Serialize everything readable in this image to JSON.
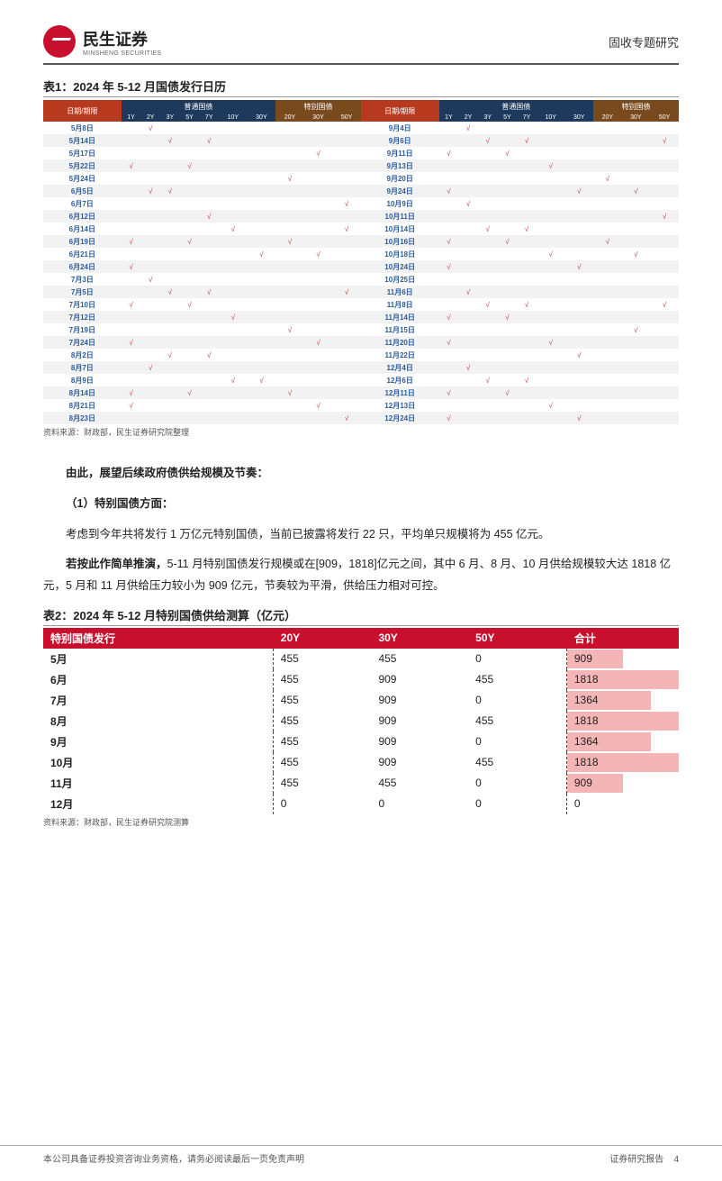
{
  "header": {
    "company_cn": "民生证券",
    "company_en": "MINSHENG SECURITIES",
    "doc_type": "固收专题研究"
  },
  "table1": {
    "title": "表1：2024 年 5-12 月国债发行日历",
    "group_labels": {
      "date": "日期/期限",
      "normal": "普通国债",
      "special": "特别国债"
    },
    "tenors_normal": [
      "1Y",
      "2Y",
      "3Y",
      "5Y",
      "7Y",
      "10Y",
      "30Y"
    ],
    "tenors_special": [
      "20Y",
      "30Y",
      "50Y"
    ],
    "check": "√",
    "header_colors": {
      "date": "#b83a1e",
      "normal": "#1d3a5c",
      "special": "#7a4a1f"
    },
    "left": [
      {
        "d": "5月8日",
        "m": [
          0,
          1,
          0,
          0,
          0,
          0,
          0,
          0,
          0,
          0
        ]
      },
      {
        "d": "5月14日",
        "m": [
          0,
          0,
          1,
          0,
          1,
          0,
          0,
          0,
          0,
          0
        ]
      },
      {
        "d": "5月17日",
        "m": [
          0,
          0,
          0,
          0,
          0,
          0,
          0,
          0,
          1,
          0
        ]
      },
      {
        "d": "5月22日",
        "m": [
          1,
          0,
          0,
          1,
          0,
          0,
          0,
          0,
          0,
          0
        ]
      },
      {
        "d": "5月24日",
        "m": [
          0,
          0,
          0,
          0,
          0,
          0,
          0,
          1,
          0,
          0
        ]
      },
      {
        "d": "6月5日",
        "m": [
          0,
          1,
          1,
          0,
          0,
          0,
          0,
          0,
          0,
          0
        ]
      },
      {
        "d": "6月7日",
        "m": [
          0,
          0,
          0,
          0,
          0,
          0,
          0,
          0,
          0,
          1
        ]
      },
      {
        "d": "6月12日",
        "m": [
          0,
          0,
          0,
          0,
          1,
          0,
          0,
          0,
          0,
          0
        ]
      },
      {
        "d": "6月14日",
        "m": [
          0,
          0,
          0,
          0,
          0,
          1,
          0,
          0,
          0,
          1
        ]
      },
      {
        "d": "6月19日",
        "m": [
          1,
          0,
          0,
          1,
          0,
          0,
          0,
          1,
          0,
          0
        ]
      },
      {
        "d": "6月21日",
        "m": [
          0,
          0,
          0,
          0,
          0,
          0,
          1,
          0,
          1,
          0
        ]
      },
      {
        "d": "6月24日",
        "m": [
          1,
          0,
          0,
          0,
          0,
          0,
          0,
          0,
          0,
          0
        ]
      },
      {
        "d": "7月3日",
        "m": [
          0,
          1,
          0,
          0,
          0,
          0,
          0,
          0,
          0,
          0
        ]
      },
      {
        "d": "7月5日",
        "m": [
          0,
          0,
          1,
          0,
          1,
          0,
          0,
          0,
          0,
          1
        ]
      },
      {
        "d": "7月10日",
        "m": [
          1,
          0,
          0,
          1,
          0,
          0,
          0,
          0,
          0,
          0
        ]
      },
      {
        "d": "7月12日",
        "m": [
          0,
          0,
          0,
          0,
          0,
          1,
          0,
          0,
          0,
          0
        ]
      },
      {
        "d": "7月19日",
        "m": [
          0,
          0,
          0,
          0,
          0,
          0,
          0,
          1,
          0,
          0
        ]
      },
      {
        "d": "7月24日",
        "m": [
          1,
          0,
          0,
          0,
          0,
          0,
          0,
          0,
          1,
          0
        ]
      },
      {
        "d": "8月2日",
        "m": [
          0,
          0,
          1,
          0,
          1,
          0,
          0,
          0,
          0,
          0
        ]
      },
      {
        "d": "8月7日",
        "m": [
          0,
          1,
          0,
          0,
          0,
          0,
          0,
          0,
          0,
          0
        ]
      },
      {
        "d": "8月9日",
        "m": [
          0,
          0,
          0,
          0,
          0,
          1,
          1,
          0,
          0,
          0
        ]
      },
      {
        "d": "8月14日",
        "m": [
          1,
          0,
          0,
          1,
          0,
          0,
          0,
          1,
          0,
          0
        ]
      },
      {
        "d": "8月21日",
        "m": [
          1,
          0,
          0,
          0,
          0,
          0,
          0,
          0,
          1,
          0
        ]
      },
      {
        "d": "8月23日",
        "m": [
          0,
          0,
          0,
          0,
          0,
          0,
          0,
          0,
          0,
          1
        ]
      }
    ],
    "right": [
      {
        "d": "9月4日",
        "m": [
          0,
          1,
          0,
          0,
          0,
          0,
          0,
          0,
          0,
          0
        ]
      },
      {
        "d": "9月6日",
        "m": [
          0,
          0,
          1,
          0,
          1,
          0,
          0,
          0,
          0,
          1
        ]
      },
      {
        "d": "9月11日",
        "m": [
          1,
          0,
          0,
          1,
          0,
          0,
          0,
          0,
          0,
          0
        ]
      },
      {
        "d": "9月13日",
        "m": [
          0,
          0,
          0,
          0,
          0,
          1,
          0,
          0,
          0,
          0
        ]
      },
      {
        "d": "9月20日",
        "m": [
          0,
          0,
          0,
          0,
          0,
          0,
          0,
          1,
          0,
          0
        ]
      },
      {
        "d": "9月24日",
        "m": [
          1,
          0,
          0,
          0,
          0,
          0,
          1,
          0,
          1,
          0
        ]
      },
      {
        "d": "10月9日",
        "m": [
          0,
          1,
          0,
          0,
          0,
          0,
          0,
          0,
          0,
          0
        ]
      },
      {
        "d": "10月11日",
        "m": [
          0,
          0,
          0,
          0,
          0,
          0,
          0,
          0,
          0,
          1
        ]
      },
      {
        "d": "10月14日",
        "m": [
          0,
          0,
          1,
          0,
          1,
          0,
          0,
          0,
          0,
          0
        ]
      },
      {
        "d": "10月16日",
        "m": [
          1,
          0,
          0,
          1,
          0,
          0,
          0,
          1,
          0,
          0
        ]
      },
      {
        "d": "10月18日",
        "m": [
          0,
          0,
          0,
          0,
          0,
          1,
          0,
          0,
          1,
          0
        ]
      },
      {
        "d": "10月24日",
        "m": [
          1,
          0,
          0,
          0,
          0,
          0,
          1,
          0,
          0,
          0
        ]
      },
      {
        "d": "10月25日",
        "m": [
          0,
          0,
          0,
          0,
          0,
          0,
          0,
          0,
          0,
          0
        ]
      },
      {
        "d": "11月6日",
        "m": [
          0,
          1,
          0,
          0,
          0,
          0,
          0,
          0,
          0,
          0
        ]
      },
      {
        "d": "11月8日",
        "m": [
          0,
          0,
          1,
          0,
          1,
          0,
          0,
          0,
          0,
          1
        ]
      },
      {
        "d": "11月14日",
        "m": [
          1,
          0,
          0,
          1,
          0,
          0,
          0,
          0,
          0,
          0
        ]
      },
      {
        "d": "11月15日",
        "m": [
          0,
          0,
          0,
          0,
          0,
          0,
          0,
          0,
          1,
          0
        ]
      },
      {
        "d": "11月20日",
        "m": [
          1,
          0,
          0,
          0,
          0,
          1,
          0,
          0,
          0,
          0
        ]
      },
      {
        "d": "11月22日",
        "m": [
          0,
          0,
          0,
          0,
          0,
          0,
          1,
          0,
          0,
          0
        ]
      },
      {
        "d": "12月4日",
        "m": [
          0,
          1,
          0,
          0,
          0,
          0,
          0,
          0,
          0,
          0
        ]
      },
      {
        "d": "12月6日",
        "m": [
          0,
          0,
          1,
          0,
          1,
          0,
          0,
          0,
          0,
          0
        ]
      },
      {
        "d": "12月11日",
        "m": [
          1,
          0,
          0,
          1,
          0,
          0,
          0,
          0,
          0,
          0
        ]
      },
      {
        "d": "12月13日",
        "m": [
          0,
          0,
          0,
          0,
          0,
          1,
          0,
          0,
          0,
          0
        ]
      },
      {
        "d": "12月24日",
        "m": [
          1,
          0,
          0,
          0,
          0,
          0,
          1,
          0,
          0,
          0
        ]
      }
    ],
    "source": "资料来源：财政部，民生证券研究院整理"
  },
  "body": {
    "p1": "由此，展望后续政府债供给规模及节奏：",
    "p2": "（1）特别国债方面：",
    "p3": "考虑到今年共将发行 1 万亿元特别国债，当前已披露将发行 22 只，平均单只规模将为 455 亿元。",
    "p4a": "若按此作简单推演，",
    "p4b": "5-11 月特别国债发行规模或在[909，1818]亿元之间，其中 6 月、8 月、10 月供给规模较大达 1818 亿元，5 月和 11 月供给压力较小为 909 亿元，节奏较为平滑，供给压力相对可控。"
  },
  "table2": {
    "title": "表2：2024 年 5-12 月特别国债供给测算（亿元）",
    "headers": [
      "特别国债发行",
      "20Y",
      "30Y",
      "50Y",
      "合计"
    ],
    "header_bg": "#c8102e",
    "bar_color": "#f3b5b5",
    "max_total": 1818,
    "rows": [
      {
        "m": "5月",
        "v": [
          455,
          455,
          0
        ],
        "t": 909
      },
      {
        "m": "6月",
        "v": [
          455,
          909,
          455
        ],
        "t": 1818
      },
      {
        "m": "7月",
        "v": [
          455,
          909,
          0
        ],
        "t": 1364
      },
      {
        "m": "8月",
        "v": [
          455,
          909,
          455
        ],
        "t": 1818
      },
      {
        "m": "9月",
        "v": [
          455,
          909,
          0
        ],
        "t": 1364
      },
      {
        "m": "10月",
        "v": [
          455,
          909,
          455
        ],
        "t": 1818
      },
      {
        "m": "11月",
        "v": [
          455,
          455,
          0
        ],
        "t": 909
      },
      {
        "m": "12月",
        "v": [
          0,
          0,
          0
        ],
        "t": 0
      }
    ],
    "source": "资料来源：财政部，民生证券研究院测算"
  },
  "footer": {
    "left": "本公司具备证券投资咨询业务资格，请务必阅读最后一页免责声明",
    "right": "证券研究报告",
    "page": "4"
  }
}
